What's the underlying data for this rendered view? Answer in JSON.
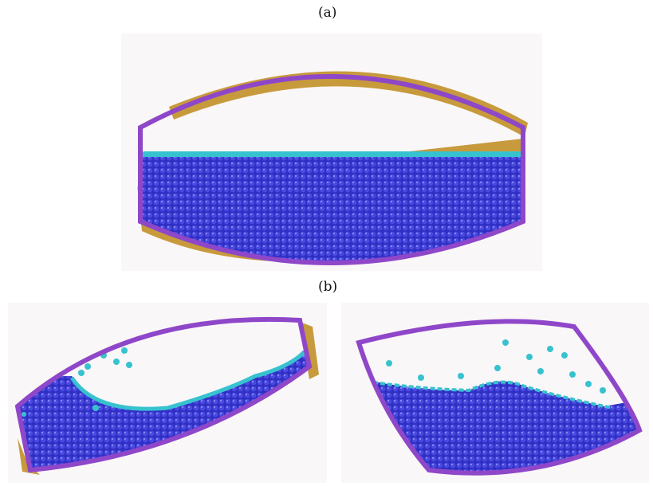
{
  "labels": {
    "a": "(a)",
    "b": "(b)"
  },
  "colors": {
    "wall": "#8f47c9",
    "wall_shadow": "#c79a3c",
    "particle": "#3e3ed2",
    "surface_particle": "#37c2cf",
    "panel_bg": "#faf7f8"
  }
}
